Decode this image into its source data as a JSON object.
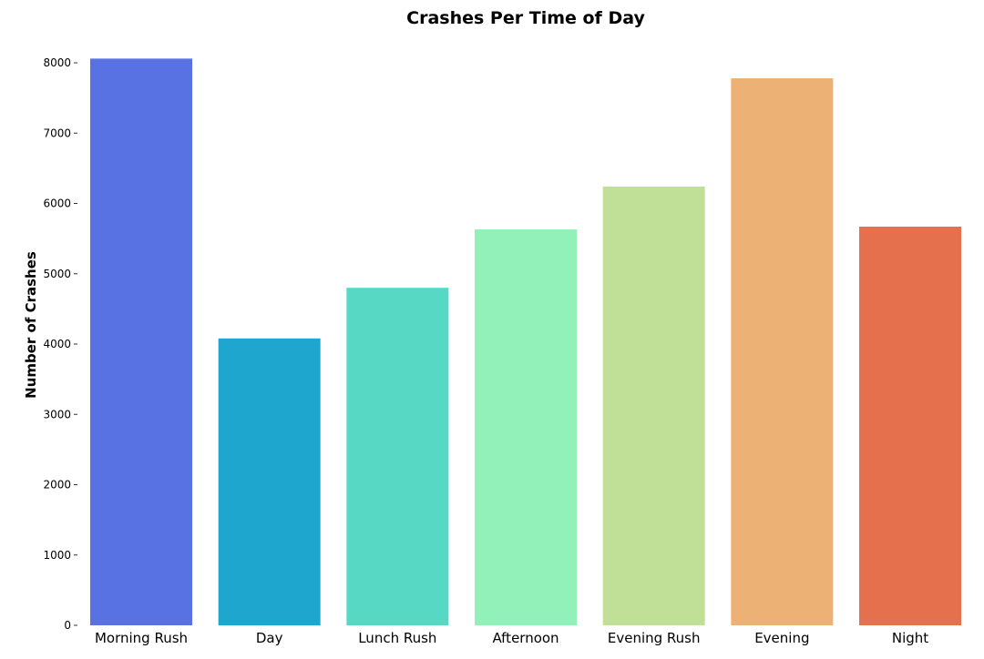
{
  "chart_data": {
    "type": "bar",
    "title": "Crashes Per Time of Day",
    "xlabel": "",
    "ylabel": "Number of Crashes",
    "categories": [
      "Morning Rush",
      "Day",
      "Lunch Rush",
      "Afternoon",
      "Evening Rush",
      "Evening",
      "Night"
    ],
    "values": [
      8060,
      4080,
      4800,
      5630,
      6240,
      7780,
      5670
    ],
    "colors": [
      "#5872e3",
      "#1fa6cf",
      "#57d8c5",
      "#92f0b9",
      "#c0df97",
      "#ebb175",
      "#e4704d"
    ],
    "ylim": [
      0,
      8000
    ],
    "yticks": [
      "0",
      "1000",
      "2000",
      "3000",
      "4000",
      "5000",
      "6000",
      "7000",
      "8000"
    ],
    "grid": false,
    "legend": "none"
  }
}
